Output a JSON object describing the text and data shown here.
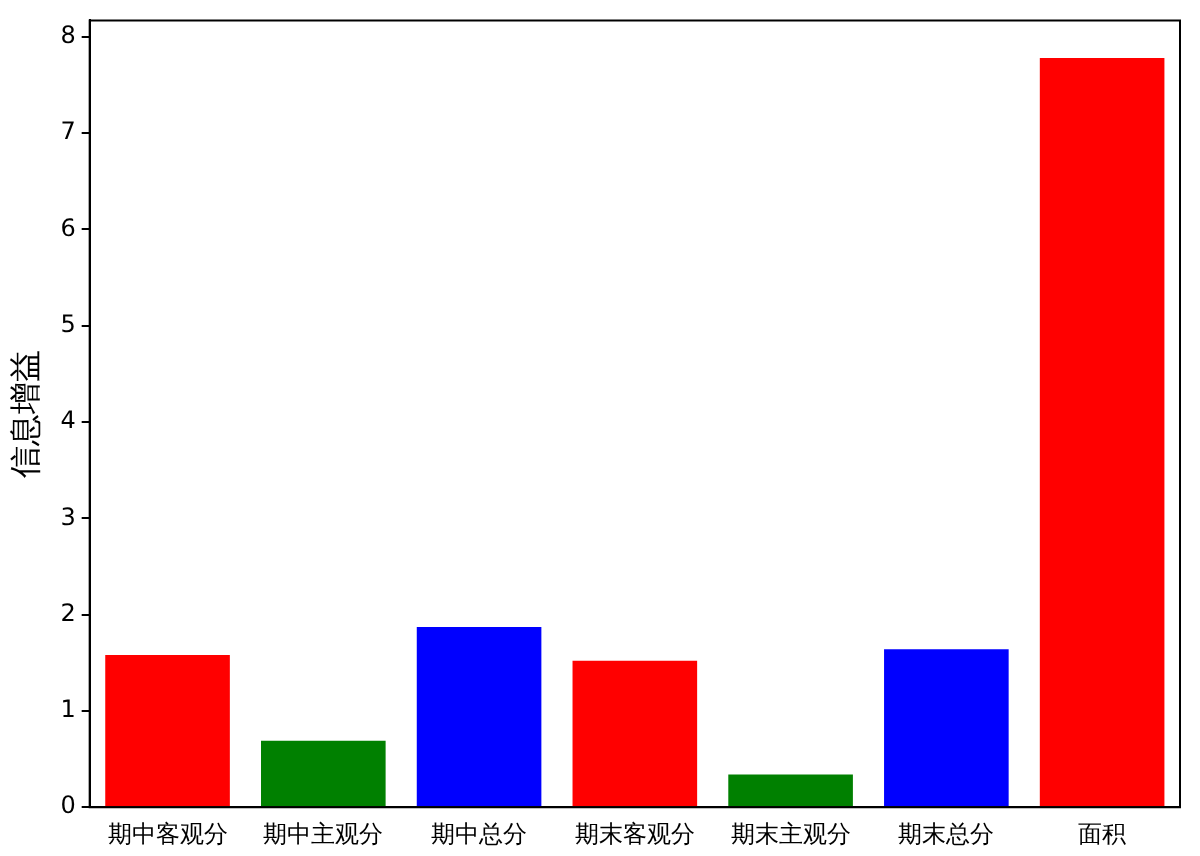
{
  "chart_data": {
    "type": "bar",
    "ylabel": "信息增益",
    "categories": [
      "期中客观分",
      "期中主观分",
      "期中总分",
      "期末客观分",
      "期末主观分",
      "期末总分",
      "面积"
    ],
    "values": [
      1.58,
      0.69,
      1.87,
      1.52,
      0.34,
      1.64,
      7.78
    ],
    "colors": [
      "#ff0000",
      "#008000",
      "#0000ff",
      "#ff0000",
      "#008000",
      "#0000ff",
      "#ff0000"
    ],
    "ylim": [
      0,
      8.17
    ],
    "yticks": [
      0,
      1,
      2,
      3,
      4,
      5,
      6,
      7,
      8
    ],
    "grid": false
  }
}
